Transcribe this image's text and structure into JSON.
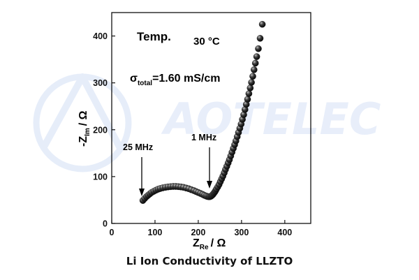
{
  "caption": "Li Ion Conductivity of LLZTO",
  "watermark": "AOTELEC",
  "annotations": {
    "temp_label": "Temp.",
    "temp_value": "30 °C",
    "sigma_symbol": "σ",
    "sigma_sub": "total",
    "sigma_value": "=1.60 mS/cm",
    "freq_low_label": "25 MHz",
    "freq_high_label": "1 MHz"
  },
  "chart_data": {
    "type": "scatter",
    "title": "",
    "xlabel_main": "Z",
    "xlabel_sub": "Re",
    "xlabel_unit": "/ Ω",
    "ylabel_prefix": "-Z",
    "ylabel_sub": "Im",
    "ylabel_unit": "/ Ω",
    "xlim": [
      0,
      460
    ],
    "ylim": [
      0,
      450
    ],
    "xticks": [
      0,
      100,
      200,
      300,
      400
    ],
    "yticks": [
      0,
      100,
      200,
      300,
      400
    ],
    "grid": false,
    "marker_color": "#1a1a1a",
    "series": [
      {
        "x": [
          72,
          76,
          80,
          84,
          88,
          92,
          97,
          102,
          107,
          112,
          118,
          124,
          130,
          136,
          142,
          148,
          154,
          160,
          166,
          172,
          178,
          184,
          190,
          195,
          200,
          205,
          210,
          214,
          218,
          221,
          224,
          226,
          228,
          230,
          232,
          234,
          236,
          238,
          240,
          242,
          245,
          248,
          251,
          254,
          257,
          260,
          263,
          266,
          269,
          272,
          275,
          278,
          281,
          284,
          287,
          290,
          293,
          296,
          299,
          302,
          305,
          308,
          311,
          314,
          317,
          320,
          323,
          326,
          329,
          332,
          335,
          339,
          343,
          348
        ],
        "y": [
          49,
          53,
          57,
          60,
          63,
          66,
          68.5,
          71,
          73,
          74.5,
          76,
          77,
          78,
          78.5,
          79,
          79,
          78.5,
          78,
          77,
          75.5,
          74,
          72,
          70,
          68,
          66,
          64,
          62,
          60,
          58.5,
          57.5,
          57,
          57,
          57.5,
          58.5,
          60,
          62,
          64.5,
          67,
          70,
          73.5,
          78,
          83,
          89,
          95,
          101,
          108,
          115,
          122,
          129,
          136,
          144,
          152,
          160,
          168,
          176,
          185,
          194,
          203,
          212,
          222,
          232,
          243,
          254,
          265,
          277,
          289,
          301,
          314,
          328,
          342,
          356,
          373,
          395,
          425
        ]
      }
    ]
  }
}
